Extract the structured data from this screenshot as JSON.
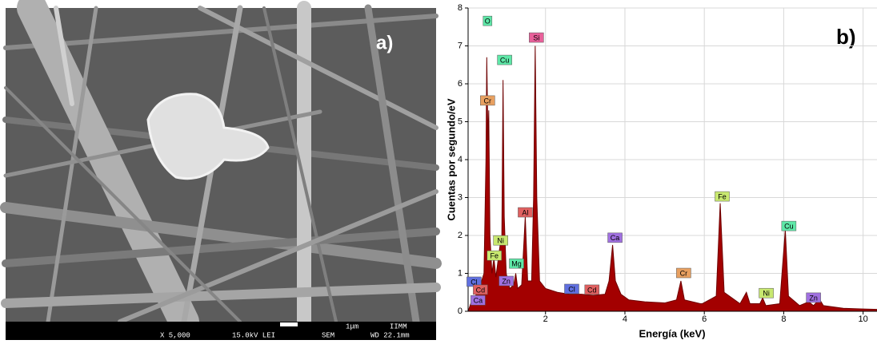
{
  "panel_a": {
    "label": "a)",
    "scale_label": "1μm",
    "institution": "IIMM",
    "magnification": "X 5,000",
    "voltage": "15.0kV LEI",
    "mode": "SEM",
    "working_distance": "WD 22.1mm"
  },
  "chart_data": {
    "type": "area",
    "label": "b)",
    "x_label": "Energía (keV)",
    "y_label": "Cuentas por segundo/eV",
    "xlim": [
      0.05,
      10.35
    ],
    "ylim": [
      0,
      8
    ],
    "xticks": [
      2,
      4,
      6,
      8,
      10
    ],
    "yticks": [
      0,
      1,
      2,
      3,
      4,
      5,
      6,
      7,
      8
    ],
    "grid": true,
    "series": [
      {
        "color": "#a30000",
        "x": [
          0.05,
          0.15,
          0.3,
          0.45,
          0.5,
          0.52,
          0.55,
          0.57,
          0.6,
          0.65,
          0.7,
          0.75,
          0.85,
          0.9,
          0.93,
          0.96,
          1.01,
          1.05,
          1.1,
          1.2,
          1.25,
          1.3,
          1.4,
          1.49,
          1.55,
          1.65,
          1.7,
          1.74,
          1.78,
          1.85,
          2.0,
          2.3,
          2.6,
          2.9,
          3.2,
          3.5,
          3.6,
          3.69,
          3.76,
          3.9,
          4.1,
          4.5,
          5.0,
          5.3,
          5.41,
          5.5,
          5.9,
          5.95,
          6.3,
          6.4,
          6.5,
          6.9,
          7.06,
          7.15,
          7.4,
          7.47,
          7.55,
          7.9,
          8.04,
          8.12,
          8.4,
          8.63,
          8.75,
          8.9,
          9.0,
          9.5,
          10.0,
          10.35
        ],
        "values": [
          0,
          0.3,
          0.5,
          1.0,
          4.0,
          6.7,
          4.5,
          5.3,
          2.0,
          1.0,
          1.4,
          0.9,
          1.7,
          2.0,
          6.1,
          2.5,
          1.0,
          0.8,
          0.6,
          0.7,
          1.0,
          0.6,
          0.7,
          2.5,
          0.8,
          0.8,
          3.0,
          7.0,
          3.0,
          0.8,
          0.6,
          0.5,
          0.45,
          0.45,
          0.42,
          0.45,
          0.8,
          1.75,
          0.8,
          0.45,
          0.3,
          0.25,
          0.22,
          0.3,
          0.8,
          0.3,
          0.2,
          0.2,
          0.4,
          2.85,
          0.5,
          0.2,
          0.5,
          0.2,
          0.2,
          0.35,
          0.15,
          0.2,
          2.15,
          0.4,
          0.15,
          0.25,
          0.15,
          0.32,
          0.15,
          0.08,
          0.06,
          0.05
        ]
      }
    ],
    "annotations": [
      {
        "text": "O",
        "color": "#5ee8a8",
        "x": 0.54,
        "y": 7.66
      },
      {
        "text": "Si",
        "color": "#e8609a",
        "x": 1.77,
        "y": 7.22
      },
      {
        "text": "Cu",
        "color": "#5ee8a8",
        "x": 0.97,
        "y": 6.63
      },
      {
        "text": "Cr",
        "color": "#e8a060",
        "x": 0.54,
        "y": 5.56
      },
      {
        "text": "Al",
        "color": "#e06060",
        "x": 1.49,
        "y": 2.61
      },
      {
        "text": "Ca",
        "color": "#a070e0",
        "x": 3.75,
        "y": 1.94
      },
      {
        "text": "Fe",
        "color": "#c8e870",
        "x": 6.45,
        "y": 3.03
      },
      {
        "text": "Cu",
        "color": "#5ee8a8",
        "x": 8.13,
        "y": 2.25
      },
      {
        "text": "Ni",
        "color": "#c8e870",
        "x": 0.87,
        "y": 1.87
      },
      {
        "text": "Fe",
        "color": "#c8e870",
        "x": 0.71,
        "y": 1.47
      },
      {
        "text": "Mg",
        "color": "#5ee8a8",
        "x": 1.27,
        "y": 1.26
      },
      {
        "text": "Zn",
        "color": "#a070e0",
        "x": 1.01,
        "y": 0.8
      },
      {
        "text": "Cl",
        "color": "#6070e0",
        "x": 0.2,
        "y": 0.78
      },
      {
        "text": "Cd",
        "color": "#e06060",
        "x": 0.36,
        "y": 0.57
      },
      {
        "text": "Ca",
        "color": "#a070e0",
        "x": 0.3,
        "y": 0.29
      },
      {
        "text": "Cl",
        "color": "#6070e0",
        "x": 2.66,
        "y": 0.59
      },
      {
        "text": "Cd",
        "color": "#e06060",
        "x": 3.17,
        "y": 0.57
      },
      {
        "text": "Cr",
        "color": "#e8a060",
        "x": 5.48,
        "y": 1.01
      },
      {
        "text": "Ni",
        "color": "#c8e870",
        "x": 7.56,
        "y": 0.48
      },
      {
        "text": "Zn",
        "color": "#a070e0",
        "x": 8.75,
        "y": 0.36
      }
    ]
  }
}
